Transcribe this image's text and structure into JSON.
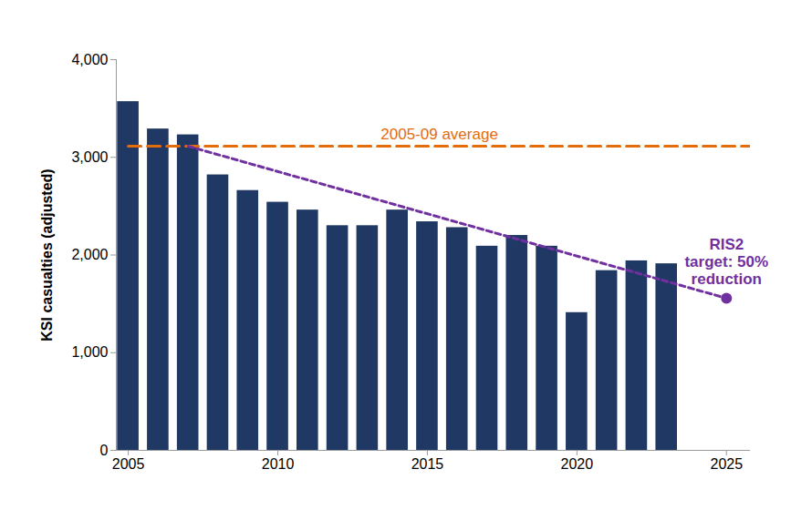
{
  "chart_data": {
    "type": "bar",
    "x": [
      2005,
      2006,
      2007,
      2008,
      2009,
      2010,
      2011,
      2012,
      2013,
      2014,
      2015,
      2016,
      2017,
      2018,
      2019,
      2020,
      2021,
      2022,
      2023
    ],
    "values": [
      3570,
      3290,
      3230,
      2820,
      2660,
      2540,
      2460,
      2300,
      2300,
      2460,
      2340,
      2280,
      2090,
      2200,
      2090,
      1410,
      1840,
      1940,
      1910
    ],
    "color": "#203864",
    "xlim": [
      2004.6,
      2025.8
    ],
    "xticks": [
      2005,
      2010,
      2015,
      2020,
      2025
    ],
    "ylim": [
      0,
      4000
    ],
    "yticks": [
      0,
      {
        "value": 1000,
        "label": "1,000"
      },
      {
        "value": 2000,
        "label": "2,000"
      },
      {
        "value": 3000,
        "label": "3,000"
      },
      {
        "value": 4000,
        "label": "4,000"
      }
    ],
    "ylabel": "KSI casualties (adjusted)",
    "annotations": [
      {
        "text": "2005-09 average",
        "x": [
          2005,
          2025.8
        ],
        "y": [
          3114,
          3114
        ],
        "color": "#e46c0a",
        "line_style": "dashed"
      },
      {
        "text": "RIS2\ntarget: 50%\nreduction",
        "x": [
          2007,
          2025
        ],
        "y": [
          3114,
          1557
        ],
        "color": "#7030a0",
        "line_style": "short-dashed",
        "marker": "circle"
      }
    ]
  }
}
